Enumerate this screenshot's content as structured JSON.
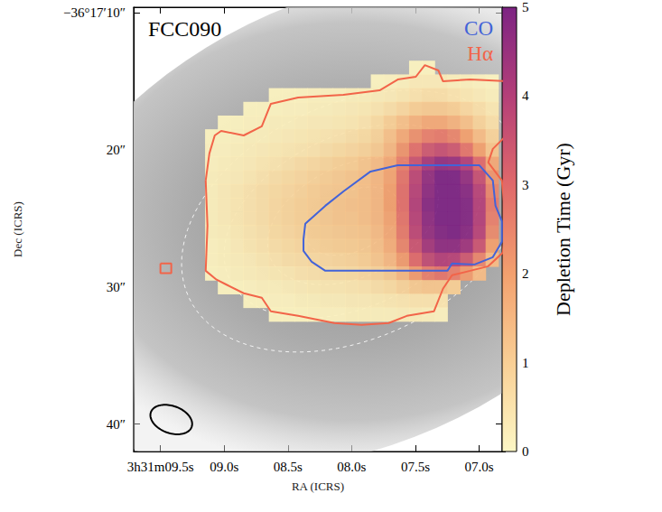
{
  "chart_data": {
    "type": "heatmap",
    "title": "FCC090",
    "x_label": "RA (ICRS)",
    "y_label": "Dec (ICRS)",
    "xlim": [
      9.71,
      6.82
    ],
    "xticks": [
      {
        "value": 9.5,
        "label": "3h31m09.5s"
      },
      {
        "value": 9.0,
        "label": "09.0s"
      },
      {
        "value": 8.5,
        "label": "08.5s"
      },
      {
        "value": 8.0,
        "label": "08.0s"
      },
      {
        "value": 7.5,
        "label": "07.5s"
      },
      {
        "value": 7.0,
        "label": "07.0s"
      }
    ],
    "ylim": [
      42,
      9.6
    ],
    "yticks": [
      {
        "value": 10,
        "label": "−36°17′10″"
      },
      {
        "value": 20,
        "label": "20″"
      },
      {
        "value": 30,
        "label": "30″"
      },
      {
        "value": 40,
        "label": "40″"
      }
    ],
    "legend": "upper right",
    "cells": {
      "x": [
        9.1,
        9.0,
        8.9,
        8.8,
        8.7,
        8.6,
        8.5,
        8.4,
        8.3,
        8.2,
        8.1,
        8.0,
        7.9,
        7.8,
        7.7,
        7.6,
        7.5,
        7.4,
        7.3,
        7.2,
        7.1,
        7.0,
        6.9
      ],
      "y": [
        14,
        15,
        16,
        17,
        18,
        19,
        20,
        21,
        22,
        23,
        24,
        25,
        26,
        27,
        28,
        29,
        30,
        31,
        32
      ],
      "values": [
        [
          null,
          null,
          null,
          null,
          null,
          null,
          null,
          null,
          null,
          null,
          null,
          null,
          null,
          null,
          null,
          null,
          0.1,
          0.1,
          null,
          null,
          null,
          null,
          null
        ],
        [
          null,
          null,
          null,
          null,
          null,
          null,
          null,
          null,
          null,
          null,
          null,
          null,
          null,
          0.1,
          0.15,
          0.2,
          0.3,
          0.3,
          0.3,
          0.2,
          0.2,
          0.15,
          0.1
        ],
        [
          null,
          null,
          null,
          null,
          null,
          0.1,
          0.1,
          0.1,
          0.15,
          0.15,
          0.15,
          0.2,
          0.2,
          0.25,
          0.3,
          0.4,
          0.5,
          0.6,
          0.6,
          0.5,
          0.4,
          0.3,
          0.2
        ],
        [
          null,
          null,
          null,
          0.1,
          0.1,
          0.1,
          0.15,
          0.15,
          0.2,
          0.2,
          0.25,
          0.3,
          0.35,
          0.45,
          0.6,
          0.8,
          1.0,
          1.1,
          1.1,
          1.0,
          0.8,
          0.6,
          0.4
        ],
        [
          null,
          0.1,
          0.1,
          0.15,
          0.15,
          0.2,
          0.2,
          0.25,
          0.3,
          0.3,
          0.35,
          0.4,
          0.5,
          0.7,
          1.0,
          1.3,
          1.6,
          1.8,
          1.8,
          1.6,
          1.3,
          0.9,
          0.6
        ],
        [
          0.1,
          0.1,
          0.15,
          0.2,
          0.2,
          0.25,
          0.3,
          0.35,
          0.4,
          0.45,
          0.5,
          0.6,
          0.7,
          0.9,
          1.3,
          1.8,
          2.3,
          2.6,
          2.7,
          2.5,
          2.0,
          1.4,
          0.9
        ],
        [
          0.15,
          0.15,
          0.2,
          0.25,
          0.3,
          0.35,
          0.4,
          0.45,
          0.5,
          0.6,
          0.7,
          0.8,
          0.9,
          1.1,
          1.5,
          2.2,
          2.9,
          3.4,
          3.6,
          3.4,
          2.8,
          2.0,
          1.2
        ],
        [
          0.15,
          0.2,
          0.25,
          0.3,
          0.4,
          0.45,
          0.55,
          0.65,
          0.75,
          0.85,
          0.95,
          1.05,
          1.2,
          1.4,
          1.8,
          2.6,
          3.5,
          4.2,
          4.6,
          4.5,
          4.0,
          3.0,
          1.8
        ],
        [
          0.2,
          0.25,
          0.3,
          0.4,
          0.5,
          0.6,
          0.7,
          0.8,
          0.9,
          1.0,
          1.1,
          1.2,
          1.3,
          1.5,
          1.9,
          2.8,
          3.8,
          4.6,
          5.0,
          5.0,
          4.6,
          3.6,
          2.2
        ],
        [
          0.2,
          0.3,
          0.4,
          0.5,
          0.6,
          0.7,
          0.8,
          0.9,
          1.0,
          1.1,
          1.15,
          1.2,
          1.3,
          1.5,
          2.0,
          2.9,
          3.9,
          4.7,
          5.0,
          5.0,
          4.8,
          3.9,
          2.5
        ],
        [
          0.2,
          0.3,
          0.4,
          0.5,
          0.6,
          0.75,
          0.85,
          0.95,
          1.05,
          1.1,
          1.2,
          1.25,
          1.3,
          1.5,
          2.0,
          2.9,
          4.0,
          4.8,
          5.0,
          5.0,
          4.9,
          4.0,
          2.7
        ],
        [
          0.2,
          0.3,
          0.4,
          0.5,
          0.6,
          0.75,
          0.85,
          0.95,
          1.05,
          1.1,
          1.2,
          1.2,
          1.3,
          1.5,
          1.9,
          2.8,
          3.9,
          4.7,
          5.0,
          5.0,
          4.9,
          4.0,
          2.6
        ],
        [
          0.2,
          0.25,
          0.35,
          0.45,
          0.55,
          0.7,
          0.8,
          0.9,
          1.0,
          1.05,
          1.1,
          1.15,
          1.2,
          1.4,
          1.8,
          2.7,
          3.8,
          4.6,
          4.9,
          5.0,
          4.8,
          3.9,
          2.4
        ],
        [
          0.15,
          0.2,
          0.3,
          0.4,
          0.5,
          0.6,
          0.7,
          0.8,
          0.9,
          0.95,
          1.0,
          1.05,
          1.1,
          1.3,
          1.7,
          2.5,
          3.5,
          4.3,
          4.7,
          4.7,
          4.4,
          3.5,
          2.0
        ],
        [
          0.15,
          0.2,
          0.25,
          0.3,
          0.4,
          0.5,
          0.6,
          0.65,
          0.75,
          0.8,
          0.85,
          0.9,
          1.0,
          1.2,
          1.5,
          2.1,
          3.0,
          3.7,
          4.0,
          3.9,
          3.4,
          2.5,
          1.4
        ],
        [
          0.1,
          0.15,
          0.2,
          0.25,
          0.3,
          0.35,
          0.4,
          0.5,
          0.55,
          0.6,
          0.65,
          0.7,
          0.8,
          0.9,
          1.1,
          1.5,
          2.1,
          2.6,
          2.8,
          2.6,
          2.1,
          1.4,
          null
        ],
        [
          null,
          0.1,
          0.1,
          0.15,
          0.2,
          0.2,
          0.25,
          0.3,
          0.35,
          0.4,
          0.4,
          0.45,
          0.5,
          0.6,
          0.7,
          0.9,
          1.1,
          1.2,
          1.2,
          1.0,
          null,
          null,
          null
        ],
        [
          null,
          null,
          null,
          0.1,
          0.1,
          0.15,
          0.15,
          0.2,
          0.2,
          0.25,
          0.25,
          0.3,
          0.3,
          0.35,
          0.4,
          0.45,
          0.5,
          0.5,
          0.45,
          null,
          null,
          null,
          null
        ],
        [
          null,
          null,
          null,
          null,
          null,
          0.1,
          0.1,
          0.1,
          0.15,
          0.15,
          0.15,
          0.2,
          0.2,
          0.2,
          0.2,
          0.25,
          0.25,
          0.2,
          0.15,
          null,
          null,
          null,
          null
        ]
      ]
    },
    "colorbar": {
      "range": [
        0,
        5
      ],
      "ticks": [
        0,
        1,
        2,
        3,
        4,
        5
      ],
      "label": "Depletion Time (Gyr)"
    },
    "series": [
      {
        "name": "CO",
        "color": "#4363d8",
        "contours": [
          [
            [
              8.378,
              26.51
            ],
            [
              8.364,
              25.39
            ],
            [
              8.207,
              24.08
            ],
            [
              8.065,
              23.03
            ],
            [
              7.852,
              21.58
            ],
            [
              7.639,
              21.12
            ],
            [
              7.0,
              21.12
            ],
            [
              6.893,
              22.24
            ],
            [
              6.872,
              24.08
            ],
            [
              6.822,
              25.2
            ],
            [
              6.822,
              26.71
            ],
            [
              6.893,
              27.83
            ],
            [
              7.036,
              28.36
            ],
            [
              7.213,
              28.29
            ],
            [
              7.249,
              28.82
            ],
            [
              8.207,
              28.82
            ],
            [
              8.314,
              28.16
            ],
            [
              8.378,
              27.37
            ],
            [
              8.378,
              26.51
            ]
          ]
        ]
      },
      {
        "name": "Hα",
        "color": "#f26449",
        "contours": [
          [
            [
              9.145,
              22.24
            ],
            [
              9.116,
              20.26
            ],
            [
              9.074,
              18.95
            ],
            [
              9.024,
              18.62
            ],
            [
              8.847,
              18.95
            ],
            [
              8.705,
              18.29
            ],
            [
              8.634,
              16.64
            ],
            [
              8.42,
              16.18
            ],
            [
              8.065,
              15.99
            ],
            [
              7.781,
              15.66
            ],
            [
              7.639,
              14.87
            ],
            [
              7.497,
              14.67
            ],
            [
              7.426,
              13.82
            ],
            [
              7.32,
              14.21
            ],
            [
              7.284,
              15.0
            ],
            [
              7.071,
              14.87
            ],
            [
              6.787,
              15.0
            ],
            [
              6.76,
              16.32
            ],
            [
              6.787,
              18.95
            ],
            [
              6.893,
              19.93
            ],
            [
              6.929,
              20.92
            ],
            [
              6.822,
              22.24
            ],
            [
              6.787,
              25.53
            ],
            [
              6.815,
              27.5
            ],
            [
              6.929,
              28.49
            ],
            [
              7.071,
              28.82
            ],
            [
              7.213,
              29.14
            ],
            [
              7.284,
              30.13
            ],
            [
              7.355,
              31.78
            ],
            [
              7.568,
              32.11
            ],
            [
              7.71,
              32.63
            ],
            [
              7.923,
              32.76
            ],
            [
              8.136,
              32.63
            ],
            [
              8.42,
              32.11
            ],
            [
              8.634,
              31.78
            ],
            [
              8.705,
              30.79
            ],
            [
              8.847,
              30.46
            ],
            [
              8.989,
              29.8
            ],
            [
              9.06,
              29.47
            ],
            [
              9.145,
              28.82
            ],
            [
              9.131,
              25.53
            ],
            [
              9.145,
              22.24
            ]
          ],
          [
            [
              9.5,
              28.29
            ],
            [
              9.415,
              28.29
            ],
            [
              9.415,
              29.0
            ],
            [
              9.5,
              29.0
            ],
            [
              9.5,
              28.29
            ]
          ]
        ]
      }
    ],
    "isophotes": [
      {
        "center": [
          7.99,
          25.2
        ],
        "rx": 0.39,
        "ry": 2.17,
        "angle": -25
      },
      {
        "center": [
          7.99,
          25.2
        ],
        "rx": 0.71,
        "ry": 4.08,
        "angle": -25
      },
      {
        "center": [
          7.99,
          25.2
        ],
        "rx": 1.07,
        "ry": 6.25,
        "angle": -25
      },
      {
        "center": [
          7.99,
          25.2
        ],
        "rx": 1.42,
        "ry": 8.55,
        "angle": -25
      }
    ],
    "beam": {
      "center": [
        9.415,
        39.67
      ],
      "rx": 0.17,
      "ry": 0.99,
      "angle": 20
    }
  }
}
